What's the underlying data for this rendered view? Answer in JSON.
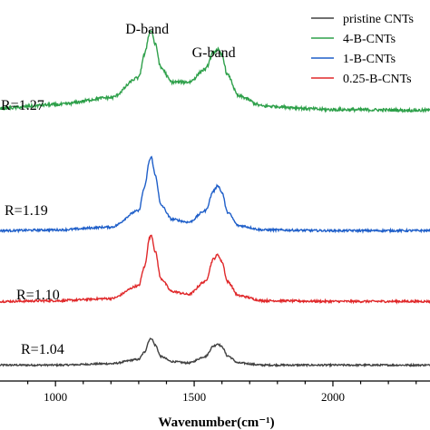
{
  "chart_data": {
    "type": "line",
    "title": "",
    "xlabel": "Wavenumber(cm⁻¹)",
    "ylabel": "",
    "xlim": [
      800,
      2350
    ],
    "x_ticks": [
      1000,
      1500,
      2000
    ],
    "x_tick_labels": [
      "1000",
      "1500",
      "2000"
    ],
    "y_ticks": false,
    "grid": false,
    "legend_position": "top-right",
    "annotations": {
      "d_band": "D-band",
      "g_band": "G-band"
    },
    "series": [
      {
        "name": "pristine CNTs",
        "legend_label": "pristine CNTs",
        "color": "#404040",
        "ratio_label": "R=1.04",
        "offset": 0.0,
        "noise": 0.012,
        "x": [
          800,
          1000,
          1200,
          1300,
          1320,
          1340,
          1345,
          1360,
          1380,
          1420,
          1480,
          1540,
          1570,
          1585,
          1600,
          1620,
          1660,
          1750,
          2000,
          2350
        ],
        "y": [
          0.02,
          0.02,
          0.04,
          0.1,
          0.2,
          0.38,
          0.4,
          0.3,
          0.14,
          0.07,
          0.05,
          0.14,
          0.29,
          0.32,
          0.28,
          0.15,
          0.05,
          0.02,
          0.02,
          0.02
        ]
      },
      {
        "name": "0.25-B-CNTs",
        "legend_label": "0.25-B-CNTs",
        "color": "#e0282a",
        "ratio_label": "R=1.10",
        "offset": 0.9,
        "noise": 0.015,
        "x": [
          800,
          1000,
          1200,
          1300,
          1320,
          1340,
          1345,
          1360,
          1380,
          1420,
          1480,
          1540,
          1570,
          1585,
          1600,
          1620,
          1660,
          1750,
          2000,
          2350
        ],
        "y": [
          0.02,
          0.03,
          0.06,
          0.24,
          0.5,
          0.92,
          0.96,
          0.72,
          0.34,
          0.16,
          0.12,
          0.3,
          0.62,
          0.68,
          0.58,
          0.3,
          0.1,
          0.03,
          0.02,
          0.02
        ]
      },
      {
        "name": "1-B-CNTs",
        "legend_label": "1-B-CNTs",
        "color": "#1f5fc9",
        "ratio_label": "R=1.19",
        "offset": 1.9,
        "noise": 0.015,
        "x": [
          800,
          1000,
          1200,
          1300,
          1320,
          1340,
          1345,
          1360,
          1380,
          1420,
          1480,
          1540,
          1570,
          1585,
          1600,
          1620,
          1660,
          1750,
          2000,
          2350
        ],
        "y": [
          0.02,
          0.03,
          0.07,
          0.3,
          0.62,
          1.02,
          1.06,
          0.8,
          0.38,
          0.18,
          0.14,
          0.3,
          0.58,
          0.66,
          0.56,
          0.28,
          0.09,
          0.03,
          0.02,
          0.02
        ]
      },
      {
        "name": "4-B-CNTs",
        "legend_label": "4-B-CNTs",
        "color": "#2ea04a",
        "ratio_label": "R=1.27",
        "offset": 3.6,
        "noise": 0.022,
        "x": [
          800,
          1000,
          1200,
          1300,
          1320,
          1340,
          1345,
          1360,
          1380,
          1420,
          1480,
          1540,
          1570,
          1585,
          1600,
          1620,
          1660,
          1750,
          2000,
          2350
        ],
        "y": [
          0.05,
          0.1,
          0.2,
          0.48,
          0.8,
          1.12,
          1.15,
          0.95,
          0.62,
          0.42,
          0.42,
          0.6,
          0.84,
          0.88,
          0.8,
          0.52,
          0.22,
          0.08,
          0.03,
          0.02
        ]
      }
    ]
  }
}
